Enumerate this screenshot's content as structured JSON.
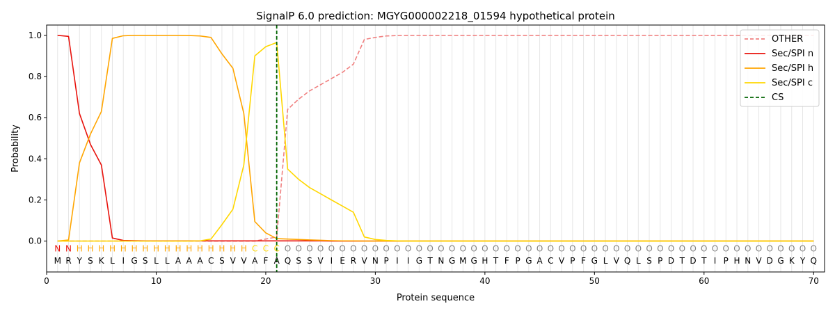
{
  "chart_data": {
    "type": "line",
    "title": "SignalP 6.0 prediction: MGYG000002218_01594 hypothetical protein",
    "xlabel": "Protein sequence",
    "ylabel": "Probability",
    "xlim": [
      0,
      71
    ],
    "ylim": [
      -0.15,
      1.05
    ],
    "xticks": [
      0,
      10,
      20,
      30,
      40,
      50,
      60,
      70
    ],
    "yticks": [
      0.0,
      0.2,
      0.4,
      0.6,
      0.8,
      1.0
    ],
    "vertical_grid": "light lines at every residue position",
    "legend_position": "top-right",
    "x": [
      1,
      2,
      3,
      4,
      5,
      6,
      7,
      8,
      9,
      10,
      11,
      12,
      13,
      14,
      15,
      16,
      17,
      18,
      19,
      20,
      21,
      22,
      23,
      24,
      25,
      26,
      27,
      28,
      29,
      30,
      31,
      32,
      33,
      34,
      35,
      36,
      37,
      38,
      39,
      40,
      41,
      42,
      43,
      44,
      45,
      46,
      47,
      48,
      49,
      50,
      51,
      52,
      53,
      54,
      55,
      56,
      57,
      58,
      59,
      60,
      61,
      62,
      63,
      64,
      65,
      66,
      67,
      68,
      69,
      70
    ],
    "series": [
      {
        "name": "OTHER",
        "color": "#f08080",
        "style": "dashed",
        "values": [
          0,
          0,
          0,
          0,
          0,
          0,
          0,
          0,
          0,
          0,
          0,
          0,
          0,
          0,
          0,
          0,
          0,
          0,
          0,
          0.01,
          0.02,
          0.64,
          0.69,
          0.73,
          0.76,
          0.79,
          0.82,
          0.86,
          0.98,
          0.99,
          0.997,
          0.999,
          1,
          1,
          1,
          1,
          1,
          1,
          1,
          1,
          1,
          1,
          1,
          1,
          1,
          1,
          1,
          1,
          1,
          1,
          1,
          1,
          1,
          1,
          1,
          1,
          1,
          1,
          1,
          1,
          1,
          1,
          1,
          1,
          1,
          1,
          1,
          1,
          1,
          1
        ]
      },
      {
        "name": "Sec/SPI n",
        "color": "#e8120c",
        "style": "solid",
        "values": [
          1.0,
          0.995,
          0.62,
          0.47,
          0.37,
          0.015,
          0.003,
          0.002,
          0.001,
          0.001,
          0.001,
          0.001,
          0.001,
          0.001,
          0.001,
          0.001,
          0.001,
          0.001,
          0.001,
          0.001,
          0.001,
          0.001,
          0.001,
          0.001,
          0.001,
          0,
          0,
          0,
          0,
          0,
          0,
          0,
          0,
          0,
          0,
          0,
          0,
          0,
          0,
          0,
          0,
          0,
          0,
          0,
          0,
          0,
          0,
          0,
          0,
          0,
          0,
          0,
          0,
          0,
          0,
          0,
          0,
          0,
          0,
          0,
          0,
          0,
          0,
          0,
          0,
          0,
          0,
          0,
          0,
          0
        ]
      },
      {
        "name": "Sec/SPI h",
        "color": "#ffa500",
        "style": "solid",
        "values": [
          0,
          0.005,
          0.38,
          0.52,
          0.63,
          0.985,
          0.998,
          1,
          1,
          1,
          1,
          1,
          0.999,
          0.997,
          0.99,
          0.91,
          0.84,
          0.62,
          0.095,
          0.04,
          0.012,
          0.01,
          0.008,
          0.006,
          0.004,
          0.002,
          0.001,
          0.001,
          0,
          0,
          0,
          0,
          0,
          0,
          0,
          0,
          0,
          0,
          0,
          0,
          0,
          0,
          0,
          0,
          0,
          0,
          0,
          0,
          0,
          0,
          0,
          0,
          0,
          0,
          0,
          0,
          0,
          0,
          0,
          0,
          0,
          0,
          0,
          0,
          0,
          0,
          0,
          0,
          0,
          0
        ]
      },
      {
        "name": "Sec/SPI c",
        "color": "#ffd700",
        "style": "solid",
        "values": [
          0,
          0,
          0,
          0,
          0,
          0,
          0,
          0,
          0,
          0,
          0,
          0,
          0,
          0.001,
          0.01,
          0.08,
          0.155,
          0.37,
          0.9,
          0.945,
          0.965,
          0.35,
          0.3,
          0.26,
          0.23,
          0.2,
          0.17,
          0.14,
          0.02,
          0.008,
          0.003,
          0.001,
          0,
          0,
          0,
          0,
          0,
          0,
          0,
          0,
          0,
          0,
          0,
          0,
          0,
          0,
          0,
          0,
          0,
          0,
          0,
          0,
          0,
          0,
          0,
          0,
          0,
          0,
          0,
          0,
          0,
          0,
          0,
          0,
          0,
          0,
          0,
          0,
          0,
          0
        ]
      },
      {
        "name": "CS",
        "color": "#006400",
        "style": "dashed-vertical",
        "position": 21
      }
    ],
    "region_labels": [
      "N",
      "N",
      "H",
      "H",
      "H",
      "H",
      "H",
      "H",
      "H",
      "H",
      "H",
      "H",
      "H",
      "H",
      "H",
      "H",
      "H",
      "H",
      "C",
      "C",
      "C",
      "O",
      "O",
      "O",
      "O",
      "O",
      "O",
      "O",
      "O",
      "O",
      "O",
      "O",
      "O",
      "O",
      "O",
      "O",
      "O",
      "O",
      "O",
      "O",
      "O",
      "O",
      "O",
      "O",
      "O",
      "O",
      "O",
      "O",
      "O",
      "O",
      "O",
      "O",
      "O",
      "O",
      "O",
      "O",
      "O",
      "O",
      "O",
      "O",
      "O",
      "O",
      "O",
      "O",
      "O",
      "O",
      "O",
      "O",
      "O",
      "O"
    ],
    "region_colors": {
      "N": "#e8120c",
      "H": "#ffa500",
      "C": "#ffd700",
      "O": "#808080"
    },
    "sequence": [
      "M",
      "R",
      "Y",
      "S",
      "K",
      "L",
      "I",
      "G",
      "S",
      "L",
      "L",
      "A",
      "A",
      "A",
      "C",
      "S",
      "V",
      "V",
      "A",
      "F",
      "A",
      "Q",
      "S",
      "S",
      "V",
      "I",
      "E",
      "R",
      "V",
      "N",
      "P",
      "I",
      "I",
      "G",
      "T",
      "N",
      "G",
      "M",
      "G",
      "H",
      "T",
      "F",
      "P",
      "G",
      "A",
      "C",
      "V",
      "P",
      "F",
      "G",
      "L",
      "V",
      "Q",
      "L",
      "S",
      "P",
      "D",
      "T",
      "D",
      "T",
      "I",
      "P",
      "H",
      "N",
      "V",
      "D",
      "G",
      "K",
      "Y",
      "Q"
    ]
  }
}
